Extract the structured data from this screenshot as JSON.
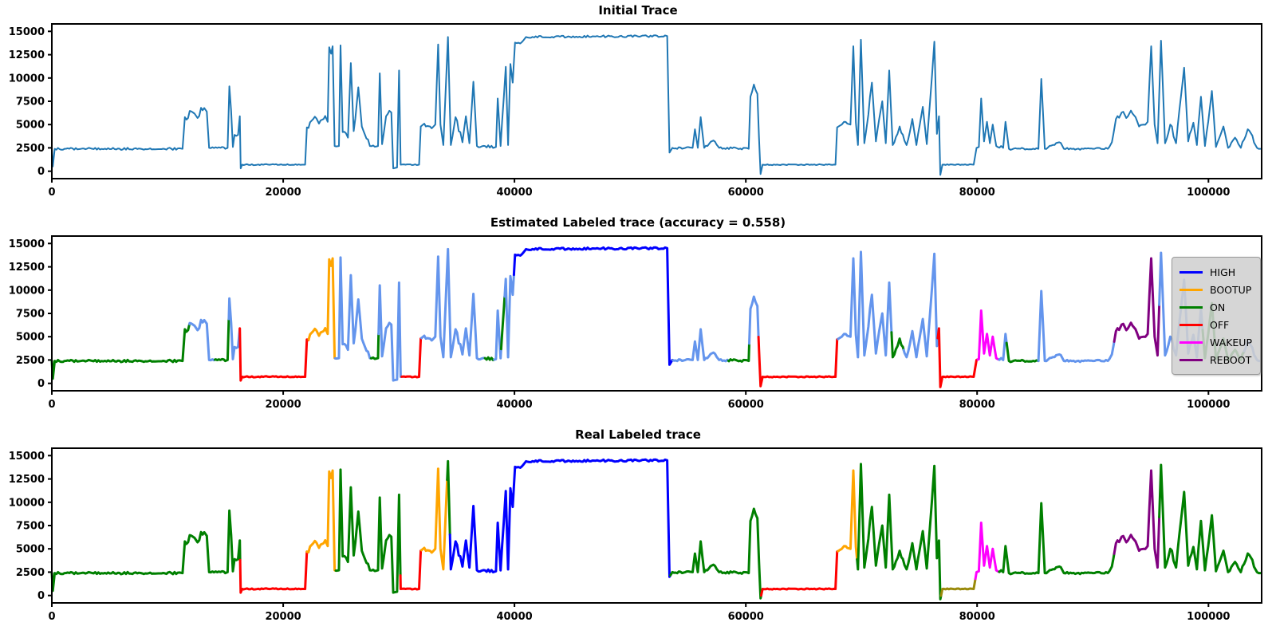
{
  "figure": {
    "background": "#ffffff"
  },
  "label_colors": {
    "HIGH": "#0000ff",
    "BOOTUP": "#ffa500",
    "ON": "#008000",
    "OFF": "#ff0000",
    "WAKEUP": "#ff00ff",
    "REBOOT": "#800080",
    "UNLABELED": "#6495ed",
    "OFF_ALT": "#9a8a0b"
  },
  "base_trace": {
    "anchors": [
      [
        0,
        2400,
        0
      ],
      [
        80,
        500,
        0
      ],
      [
        250,
        2400,
        120
      ],
      [
        11300,
        2400,
        120
      ],
      [
        11500,
        5800,
        400
      ],
      [
        12200,
        6300,
        450
      ],
      [
        12600,
        5700,
        300
      ],
      [
        12900,
        6800,
        350
      ],
      [
        13400,
        6400,
        350
      ],
      [
        13600,
        2500,
        100
      ],
      [
        15200,
        2500,
        100
      ],
      [
        15350,
        9100,
        0
      ],
      [
        15500,
        6500,
        200
      ],
      [
        15650,
        2600,
        100
      ],
      [
        15800,
        3900,
        150
      ],
      [
        16100,
        3900,
        150
      ],
      [
        16250,
        5900,
        0
      ],
      [
        16330,
        300,
        0
      ],
      [
        16450,
        700,
        60
      ],
      [
        21900,
        700,
        60
      ],
      [
        22050,
        4700,
        350
      ],
      [
        22600,
        5600,
        550
      ],
      [
        23100,
        5100,
        450
      ],
      [
        23500,
        5600,
        500
      ],
      [
        23850,
        5300,
        300
      ],
      [
        23980,
        13300,
        0
      ],
      [
        24150,
        12600,
        250
      ],
      [
        24280,
        13400,
        0
      ],
      [
        24450,
        2700,
        150
      ],
      [
        24820,
        2700,
        150
      ],
      [
        24960,
        13500,
        0
      ],
      [
        25150,
        4200,
        300
      ],
      [
        25600,
        3600,
        300
      ],
      [
        25850,
        11600,
        0
      ],
      [
        26100,
        4300,
        350
      ],
      [
        26500,
        9000,
        0
      ],
      [
        26800,
        4800,
        450
      ],
      [
        27200,
        3500,
        300
      ],
      [
        27500,
        2700,
        200
      ],
      [
        28200,
        2700,
        200
      ],
      [
        28350,
        10500,
        0
      ],
      [
        28550,
        2900,
        250
      ],
      [
        28900,
        5900,
        350
      ],
      [
        29350,
        6300,
        0
      ],
      [
        29520,
        300,
        0
      ],
      [
        29850,
        400,
        50
      ],
      [
        30020,
        10800,
        0
      ],
      [
        30160,
        700,
        50
      ],
      [
        31750,
        700,
        50
      ],
      [
        31900,
        4800,
        0
      ],
      [
        32200,
        5100,
        350
      ],
      [
        32700,
        4800,
        300
      ],
      [
        33150,
        5000,
        300
      ],
      [
        33400,
        13600,
        0
      ],
      [
        33600,
        5000,
        250
      ],
      [
        33850,
        2800,
        200
      ],
      [
        34250,
        14400,
        0
      ],
      [
        34500,
        2800,
        250
      ],
      [
        34900,
        5800,
        450
      ],
      [
        35500,
        3100,
        300
      ],
      [
        35800,
        5900,
        0
      ],
      [
        36100,
        3000,
        250
      ],
      [
        36450,
        9600,
        0
      ],
      [
        36750,
        2700,
        200
      ],
      [
        37450,
        2700,
        180
      ],
      [
        38400,
        2600,
        150
      ],
      [
        38550,
        7800,
        0
      ],
      [
        38800,
        2700,
        150
      ],
      [
        39250,
        11200,
        0
      ],
      [
        39450,
        2800,
        200
      ],
      [
        39650,
        11500,
        0
      ],
      [
        39850,
        9500,
        0
      ],
      [
        40050,
        13800,
        180
      ],
      [
        40500,
        13700,
        150
      ],
      [
        41000,
        14400,
        110
      ],
      [
        47000,
        14450,
        110
      ],
      [
        53200,
        14500,
        110
      ],
      [
        53400,
        2000,
        0
      ],
      [
        53650,
        2500,
        150
      ],
      [
        55400,
        2500,
        150
      ],
      [
        55600,
        4500,
        0
      ],
      [
        55850,
        2500,
        130
      ],
      [
        56100,
        5800,
        0
      ],
      [
        56400,
        2500,
        130
      ],
      [
        57200,
        3300,
        220
      ],
      [
        57700,
        2500,
        130
      ],
      [
        60250,
        2400,
        110
      ],
      [
        60400,
        8000,
        550
      ],
      [
        60700,
        9300,
        450
      ],
      [
        61000,
        8300,
        380
      ],
      [
        61280,
        -300,
        0
      ],
      [
        61450,
        700,
        55
      ],
      [
        67750,
        700,
        55
      ],
      [
        67900,
        4700,
        0
      ],
      [
        68150,
        4900,
        300
      ],
      [
        68500,
        5300,
        450
      ],
      [
        69050,
        5000,
        380
      ],
      [
        69300,
        13400,
        0
      ],
      [
        69520,
        5200,
        250
      ],
      [
        69700,
        2800,
        200
      ],
      [
        69950,
        14100,
        0
      ],
      [
        70250,
        3000,
        250
      ],
      [
        70600,
        6100,
        400
      ],
      [
        70900,
        9500,
        0
      ],
      [
        71250,
        3200,
        300
      ],
      [
        71800,
        7500,
        0
      ],
      [
        72100,
        3000,
        250
      ],
      [
        72400,
        10800,
        0
      ],
      [
        72700,
        2800,
        230
      ],
      [
        73300,
        4800,
        350
      ],
      [
        73900,
        2800,
        230
      ],
      [
        74400,
        5600,
        0
      ],
      [
        74750,
        2800,
        200
      ],
      [
        75300,
        6900,
        0
      ],
      [
        75650,
        2900,
        200
      ],
      [
        76100,
        10300,
        0
      ],
      [
        76300,
        13900,
        0
      ],
      [
        76520,
        4000,
        250
      ],
      [
        76700,
        5900,
        0
      ],
      [
        76820,
        -400,
        0
      ],
      [
        77000,
        700,
        45
      ],
      [
        79700,
        700,
        45
      ],
      [
        79950,
        2500,
        90
      ],
      [
        80150,
        2600,
        120
      ],
      [
        80350,
        7800,
        0
      ],
      [
        80600,
        3200,
        200
      ],
      [
        80850,
        5300,
        0
      ],
      [
        81100,
        3000,
        200
      ],
      [
        81350,
        5000,
        0
      ],
      [
        81650,
        2700,
        150
      ],
      [
        82250,
        2500,
        130
      ],
      [
        82450,
        5300,
        0
      ],
      [
        82750,
        2400,
        110
      ],
      [
        85300,
        2400,
        110
      ],
      [
        85550,
        9900,
        0
      ],
      [
        85850,
        2400,
        110
      ],
      [
        87100,
        3100,
        180
      ],
      [
        87500,
        2400,
        110
      ],
      [
        91300,
        2400,
        110
      ],
      [
        91650,
        3100,
        250
      ],
      [
        92000,
        5600,
        380
      ],
      [
        92500,
        6300,
        380
      ],
      [
        92900,
        5700,
        320
      ],
      [
        93300,
        6500,
        320
      ],
      [
        93700,
        5800,
        300
      ],
      [
        94000,
        4800,
        250
      ],
      [
        94400,
        5000,
        280
      ],
      [
        94750,
        5300,
        280
      ],
      [
        95050,
        13400,
        0
      ],
      [
        95350,
        5000,
        250
      ],
      [
        95600,
        3000,
        200
      ],
      [
        95900,
        14000,
        0
      ],
      [
        96250,
        3000,
        250
      ],
      [
        96700,
        5000,
        380
      ],
      [
        97200,
        3000,
        220
      ],
      [
        97900,
        11100,
        0
      ],
      [
        98250,
        3200,
        250
      ],
      [
        98700,
        5200,
        0
      ],
      [
        99000,
        2800,
        200
      ],
      [
        99350,
        8000,
        0
      ],
      [
        99700,
        2700,
        200
      ],
      [
        100300,
        8600,
        0
      ],
      [
        100650,
        2600,
        180
      ],
      [
        101300,
        4800,
        0
      ],
      [
        101700,
        2500,
        150
      ],
      [
        102300,
        3600,
        220
      ],
      [
        102800,
        2500,
        150
      ],
      [
        103400,
        4500,
        280
      ],
      [
        103800,
        3800,
        280
      ],
      [
        104200,
        2500,
        130
      ],
      [
        104500,
        2400,
        100
      ]
    ]
  },
  "chart_data": [
    {
      "type": "line",
      "title": "Initial Trace",
      "xticks": [
        0,
        20000,
        40000,
        60000,
        80000,
        100000
      ],
      "yticks": [
        0,
        2500,
        5000,
        7500,
        10000,
        12500,
        15000
      ],
      "xlim": [
        0,
        104600
      ],
      "ylim": [
        -800,
        15800
      ],
      "grid": false,
      "line_color": "#1f77b4",
      "line_width": 2,
      "series": "base_trace"
    },
    {
      "type": "line",
      "title": "Estimated Labeled trace (accuracy = 0.558)",
      "accuracy": 0.558,
      "xticks": [
        0,
        20000,
        40000,
        60000,
        80000,
        100000
      ],
      "yticks": [
        0,
        2500,
        5000,
        7500,
        10000,
        12500,
        15000
      ],
      "xlim": [
        0,
        104600
      ],
      "ylim": [
        -800,
        15800
      ],
      "grid": false,
      "line_width": 3,
      "series": "base_trace",
      "legend_position": "right",
      "legend": [
        {
          "label": "HIGH",
          "color": "#0000ff"
        },
        {
          "label": "BOOTUP",
          "color": "#ffa500"
        },
        {
          "label": "ON",
          "color": "#008000"
        },
        {
          "label": "OFF",
          "color": "#ff0000"
        },
        {
          "label": "WAKEUP",
          "color": "#ff00ff"
        },
        {
          "label": "REBOOT",
          "color": "#800080"
        }
      ],
      "segments": [
        {
          "x0": 0,
          "x1": 11900,
          "label": "ON"
        },
        {
          "x0": 11900,
          "x1": 14100,
          "label": "UNLABELED"
        },
        {
          "x0": 14100,
          "x1": 15300,
          "label": "ON"
        },
        {
          "x0": 15300,
          "x1": 16245,
          "label": "UNLABELED"
        },
        {
          "x0": 16245,
          "x1": 22200,
          "label": "OFF"
        },
        {
          "x0": 22200,
          "x1": 24500,
          "label": "BOOTUP"
        },
        {
          "x0": 24500,
          "x1": 27600,
          "label": "UNLABELED"
        },
        {
          "x0": 27600,
          "x1": 28250,
          "label": "ON"
        },
        {
          "x0": 28250,
          "x1": 30250,
          "label": "UNLABELED"
        },
        {
          "x0": 30250,
          "x1": 31960,
          "label": "OFF"
        },
        {
          "x0": 31960,
          "x1": 37450,
          "label": "UNLABELED"
        },
        {
          "x0": 37450,
          "x1": 38250,
          "label": "ON"
        },
        {
          "x0": 38250,
          "x1": 38850,
          "label": "UNLABELED"
        },
        {
          "x0": 38850,
          "x1": 39150,
          "label": "ON"
        },
        {
          "x0": 39150,
          "x1": 39950,
          "label": "UNLABELED"
        },
        {
          "x0": 39950,
          "x1": 53700,
          "label": "HIGH"
        },
        {
          "x0": 53700,
          "x1": 58500,
          "label": "UNLABELED"
        },
        {
          "x0": 58500,
          "x1": 60300,
          "label": "ON"
        },
        {
          "x0": 60300,
          "x1": 61100,
          "label": "UNLABELED"
        },
        {
          "x0": 61100,
          "x1": 67970,
          "label": "OFF"
        },
        {
          "x0": 67970,
          "x1": 72600,
          "label": "UNLABELED"
        },
        {
          "x0": 72600,
          "x1": 73650,
          "label": "ON"
        },
        {
          "x0": 73650,
          "x1": 76600,
          "label": "UNLABELED"
        },
        {
          "x0": 76600,
          "x1": 80050,
          "label": "OFF"
        },
        {
          "x0": 80050,
          "x1": 81900,
          "label": "WAKEUP"
        },
        {
          "x0": 81900,
          "x1": 82550,
          "label": "UNLABELED"
        },
        {
          "x0": 82550,
          "x1": 85300,
          "label": "ON"
        },
        {
          "x0": 85300,
          "x1": 91850,
          "label": "UNLABELED"
        },
        {
          "x0": 91850,
          "x1": 95750,
          "label": "REBOOT"
        },
        {
          "x0": 95750,
          "x1": 99500,
          "label": "UNLABELED"
        },
        {
          "x0": 99500,
          "x1": 103100,
          "label": "ON"
        },
        {
          "x0": 103100,
          "x1": 104500,
          "label": "UNLABELED"
        }
      ]
    },
    {
      "type": "line",
      "title": "Real Labeled trace",
      "xticks": [
        0,
        20000,
        40000,
        60000,
        80000,
        100000
      ],
      "yticks": [
        0,
        2500,
        5000,
        7500,
        10000,
        12500,
        15000
      ],
      "xlim": [
        0,
        104600
      ],
      "ylim": [
        -800,
        15800
      ],
      "grid": false,
      "line_width": 3,
      "series": "base_trace",
      "segments": [
        {
          "x0": 0,
          "x1": 16280,
          "label": "ON"
        },
        {
          "x0": 16280,
          "x1": 22050,
          "label": "OFF"
        },
        {
          "x0": 22050,
          "x1": 24550,
          "label": "BOOTUP"
        },
        {
          "x0": 24550,
          "x1": 30140,
          "label": "ON"
        },
        {
          "x0": 30140,
          "x1": 31960,
          "label": "OFF"
        },
        {
          "x0": 31960,
          "x1": 34180,
          "label": "BOOTUP"
        },
        {
          "x0": 34180,
          "x1": 34420,
          "label": "ON"
        },
        {
          "x0": 34420,
          "x1": 53480,
          "label": "HIGH"
        },
        {
          "x0": 53480,
          "x1": 61330,
          "label": "ON"
        },
        {
          "x0": 61330,
          "x1": 67970,
          "label": "OFF"
        },
        {
          "x0": 67970,
          "x1": 69620,
          "label": "BOOTUP"
        },
        {
          "x0": 69620,
          "x1": 76880,
          "label": "ON"
        },
        {
          "x0": 76880,
          "x1": 79850,
          "label": "OFF_ALT"
        },
        {
          "x0": 79850,
          "x1": 81900,
          "label": "WAKEUP"
        },
        {
          "x0": 81900,
          "x1": 91850,
          "label": "ON"
        },
        {
          "x0": 91850,
          "x1": 95750,
          "label": "REBOOT"
        },
        {
          "x0": 95750,
          "x1": 104500,
          "label": "ON"
        }
      ]
    }
  ]
}
